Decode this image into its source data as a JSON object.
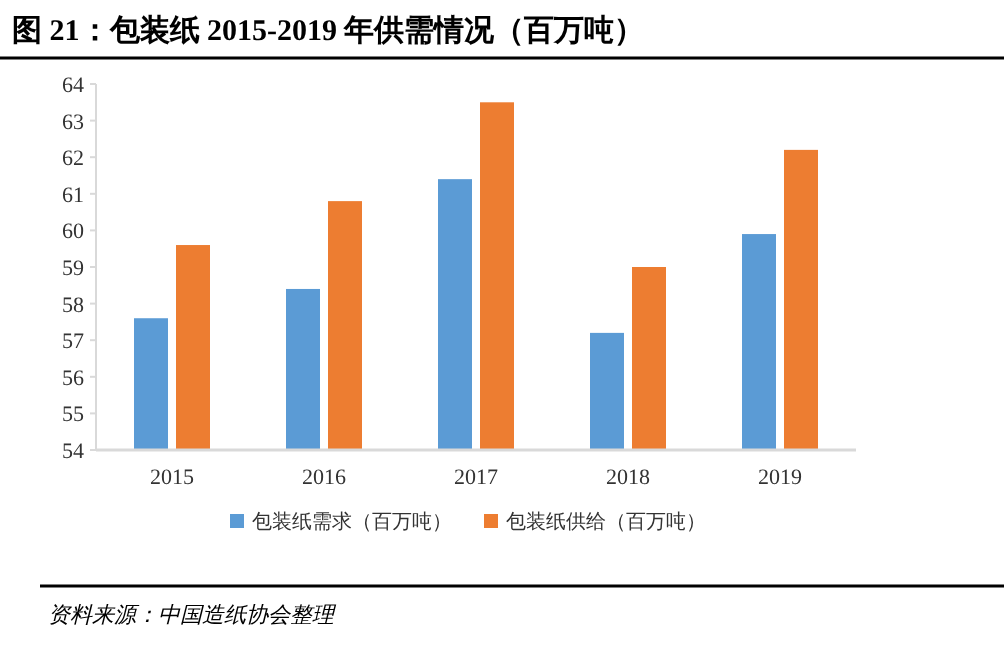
{
  "chart_data": {
    "type": "bar",
    "title": "图 21：包装纸 2015-2019 年供需情况（百万吨）",
    "categories": [
      "2015",
      "2016",
      "2017",
      "2018",
      "2019"
    ],
    "series": [
      {
        "name": "包装纸需求（百万吨）",
        "color": "#5b9bd5",
        "values": [
          57.6,
          58.4,
          61.4,
          57.2,
          59.9
        ]
      },
      {
        "name": "包装纸供给（百万吨）",
        "color": "#ed7d31",
        "values": [
          59.6,
          60.8,
          63.5,
          59.0,
          62.2
        ]
      }
    ],
    "ylim": [
      54,
      64
    ],
    "yticks": [
      54,
      55,
      56,
      57,
      58,
      59,
      60,
      61,
      62,
      63,
      64
    ],
    "grid": false,
    "legend": "bottom",
    "annotations": [
      "资料来源：中国造纸协会整理"
    ]
  }
}
